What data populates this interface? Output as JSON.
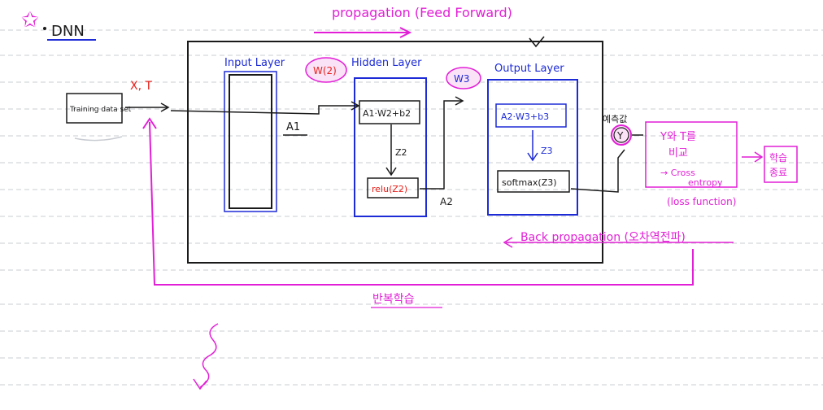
{
  "title": "DNN",
  "colors": {
    "ink": "#1a1a1a",
    "blue": "#1d2bd6",
    "magenta": "#e21fd6",
    "red": "#e8201a",
    "rule": "#c9ccd2"
  },
  "top_arrow_label": "propagation (Feed Forward)",
  "input": {
    "label": "X, T",
    "source": "Training data set"
  },
  "layers": {
    "input": "Input Layer",
    "hidden": "Hidden Layer",
    "output": "Output Layer"
  },
  "weights": {
    "w2": "W(2)",
    "w3": "W3"
  },
  "hidden_box": {
    "formula": "A1·W2+b2",
    "z": "Z2",
    "activation": "relu(Z2)",
    "a_out": "A2"
  },
  "output_box": {
    "formula": "A2·W3+b3",
    "z": "Z3",
    "activation": "softmax(Z3)"
  },
  "a1_label": "A1",
  "prediction": {
    "label": "예측값",
    "symbol": "Y"
  },
  "compare_box": {
    "line1": "Y와 T를",
    "line2": "비교",
    "line3": "→ Cross",
    "line4": "entropy",
    "line5": "(loss function)"
  },
  "end_box": {
    "line1": "학습",
    "line2": "종료"
  },
  "back_label": "Back propagation (오차역전파)",
  "loop_label": "반복학습"
}
